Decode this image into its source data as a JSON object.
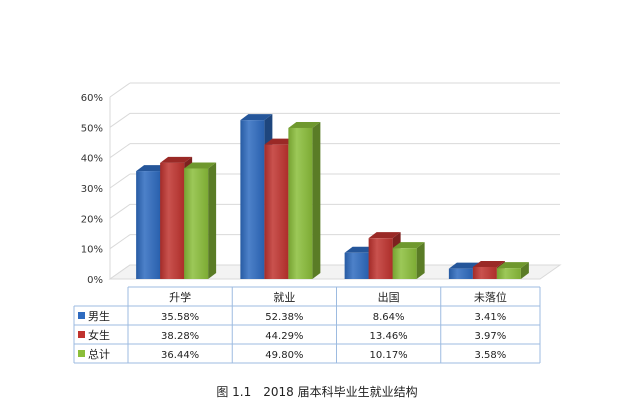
{
  "chart_data": {
    "type": "bar",
    "categories": [
      "升学",
      "就业",
      "出国",
      "未落位"
    ],
    "series": [
      {
        "name": "男生",
        "color": "#2E6BC0",
        "values": [
          35.58,
          52.38,
          8.64,
          3.41
        ],
        "labels": [
          "35.58%",
          "52.38%",
          "8.64%",
          "3.41%"
        ]
      },
      {
        "name": "女生",
        "color": "#C0332F",
        "values": [
          38.28,
          44.29,
          13.46,
          3.97
        ],
        "labels": [
          "38.28%",
          "44.29%",
          "13.46%",
          "3.97%"
        ]
      },
      {
        "name": "总计",
        "color": "#8BBE3A",
        "values": [
          36.44,
          49.8,
          10.17,
          3.58
        ],
        "labels": [
          "36.44%",
          "49.80%",
          "10.17%",
          "3.58%"
        ]
      }
    ],
    "yticks": [
      "0%",
      "10%",
      "20%",
      "30%",
      "40%",
      "50%",
      "60%"
    ],
    "ylim": [
      0,
      60
    ],
    "grid": true,
    "legend": "data-table"
  },
  "caption": {
    "number": "图 1.1",
    "text": "2018 届本科毕业生就业结构"
  }
}
